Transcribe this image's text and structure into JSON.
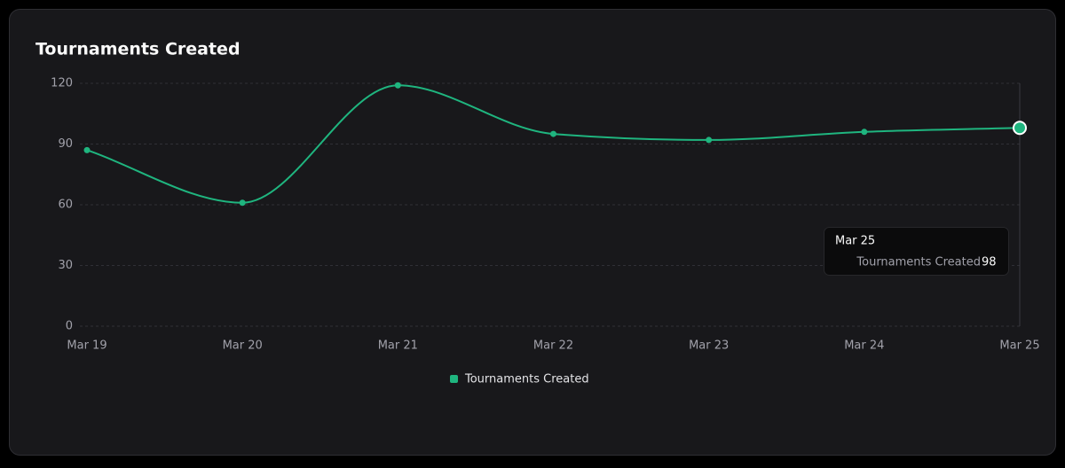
{
  "chart_data": {
    "type": "line",
    "title": "Tournaments Created",
    "categories": [
      "Mar 19",
      "Mar 20",
      "Mar 21",
      "Mar 22",
      "Mar 23",
      "Mar 24",
      "Mar 25"
    ],
    "series": [
      {
        "name": "Tournaments Created",
        "color": "#1fb57f",
        "values": [
          87,
          61,
          119,
          95,
          92,
          96,
          98
        ]
      }
    ],
    "ylim": [
      0,
      120
    ],
    "yticks": [
      0,
      30,
      60,
      90,
      120
    ],
    "grid": true,
    "tooltip": {
      "category": "Mar 25",
      "series": "Tournaments Created",
      "value": 98
    }
  }
}
